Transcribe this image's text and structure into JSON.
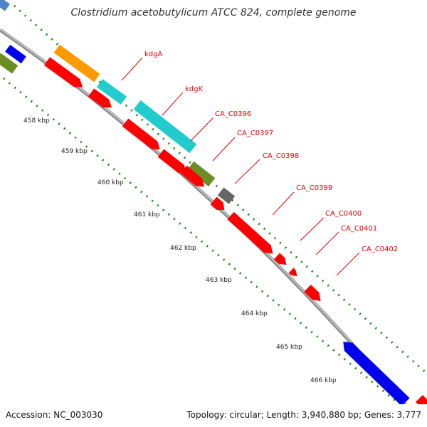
{
  "title": "Clostridium acetobutylicum ATCC 824, complete genome",
  "footer": {
    "accession": "Accession: NC_003030",
    "topology": "Topology: circular; Length: 3,940,880 bp; Genes: 3,777"
  },
  "scale_labels": [
    "458 kbp",
    "459 kbp",
    "460 kbp",
    "461 kbp",
    "462 kbp",
    "463 kbp",
    "464 kbp",
    "465 kbp",
    "466 kbp"
  ],
  "gene_labels": [
    "kdgA",
    "kdgK",
    "CA_C0396",
    "CA_C0397",
    "CA_C0398",
    "CA_C0399",
    "CA_C0400",
    "CA_C0401",
    "CA_C0402"
  ],
  "colors": {
    "cds_red": "#ff0000",
    "cyan": "#22cccc",
    "orange": "#ff9900",
    "olive": "#6b8e23",
    "gray": "#666666",
    "blue": "#0000ee",
    "backbone": "#999999",
    "ticks": "#1a8a1a",
    "label": "#e60000"
  },
  "icons": [
    "gene-arrow-icon"
  ]
}
